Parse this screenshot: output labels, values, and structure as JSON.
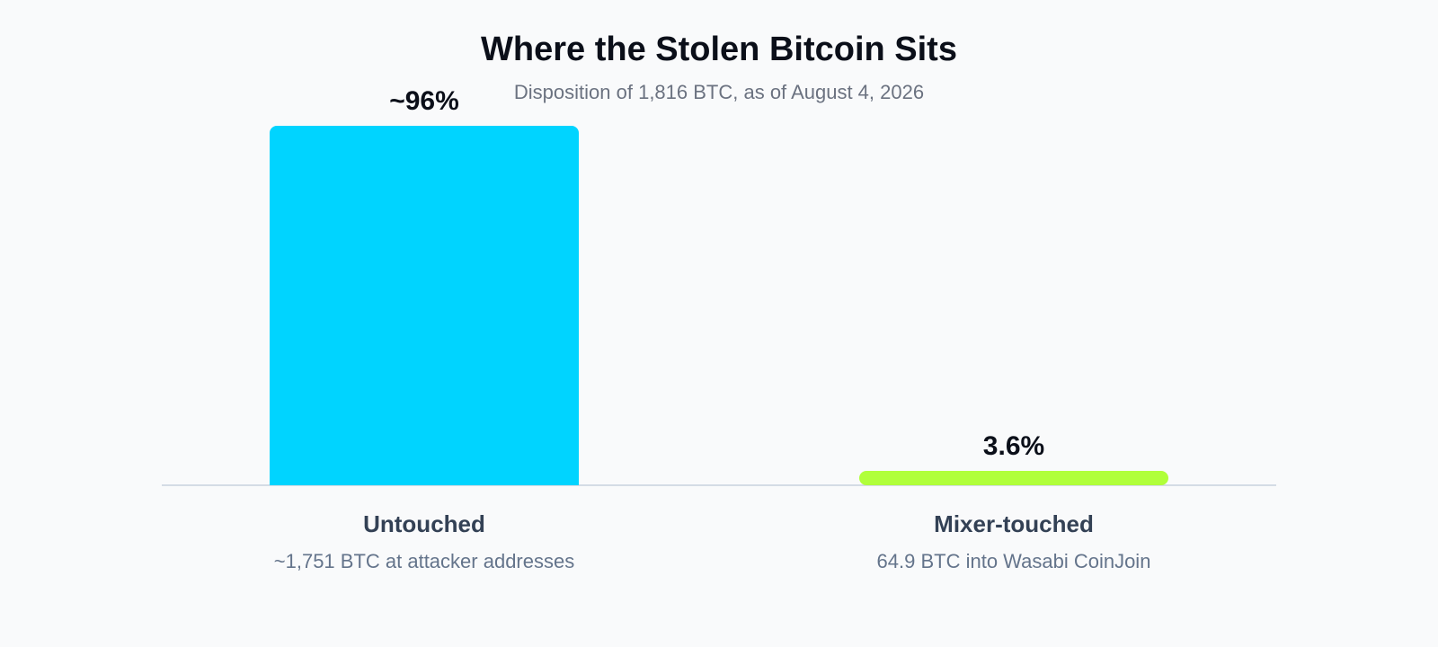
{
  "chart_data": {
    "type": "bar",
    "title": "Where the Stolen Bitcoin Sits",
    "subtitle": "Disposition of 1,816 BTC, as of August 4, 2026",
    "categories": [
      "Untouched",
      "Mixer-touched"
    ],
    "category_details": [
      "~1,751 BTC at attacker addresses",
      "64.9 BTC into Wasabi CoinJoin"
    ],
    "values": [
      96,
      3.6
    ],
    "value_labels": [
      "~96%",
      "3.6%"
    ],
    "colors": [
      "#00d4ff",
      "#b0ff3a"
    ],
    "ylim": [
      0,
      96
    ],
    "grid": false,
    "legend": "none"
  }
}
